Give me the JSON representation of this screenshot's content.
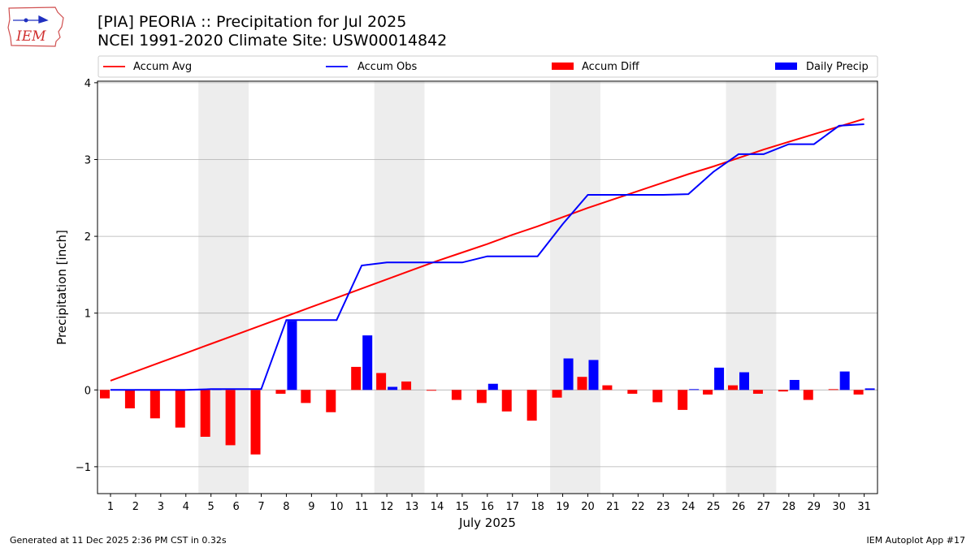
{
  "header": {
    "title_line1": "[PIA] PEORIA :: Precipitation for Jul 2025",
    "title_line2": "NCEI 1991-2020 Climate Site: USW00014842"
  },
  "logo": {
    "text": "IEM"
  },
  "footer": {
    "generated": "Generated at 11 Dec 2025 2:36 PM CST in 0.32s",
    "app": "IEM Autoplot App #17"
  },
  "colors": {
    "avg": "#ff0000",
    "obs": "#0000ff",
    "diff": "#ff0000",
    "daily": "#0000ff",
    "weekend": "#ededed",
    "grid": "#b0b0b0"
  },
  "chart_data": {
    "type": "bar",
    "title": "[PIA] PEORIA :: Precipitation for Jul 2025",
    "xlabel": "July 2025",
    "ylabel": "Precipitation [inch]",
    "ylim": [
      -1.35,
      4.02
    ],
    "yticks": [
      -1,
      0,
      1,
      2,
      3,
      4
    ],
    "ytick_labels": [
      "−1",
      "0",
      "1",
      "2",
      "3",
      "4"
    ],
    "grid": true,
    "legend_position": "top",
    "categories": [
      "1",
      "2",
      "3",
      "4",
      "5",
      "6",
      "7",
      "8",
      "9",
      "10",
      "11",
      "12",
      "13",
      "14",
      "15",
      "16",
      "17",
      "18",
      "19",
      "20",
      "21",
      "22",
      "23",
      "24",
      "25",
      "26",
      "27",
      "28",
      "29",
      "30",
      "31"
    ],
    "weekend_days": [
      5,
      6,
      12,
      13,
      19,
      20,
      26,
      27
    ],
    "legend": [
      "Accum Avg",
      "Accum Obs",
      "Accum Diff",
      "Daily Precip"
    ],
    "series": [
      {
        "name": "Accum Avg",
        "kind": "line",
        "values": [
          0.12,
          0.24,
          0.36,
          0.48,
          0.6,
          0.72,
          0.84,
          0.96,
          1.08,
          1.2,
          1.32,
          1.44,
          1.56,
          1.68,
          1.79,
          1.9,
          2.02,
          2.13,
          2.25,
          2.37,
          2.48,
          2.59,
          2.7,
          2.81,
          2.91,
          3.02,
          3.13,
          3.23,
          3.33,
          3.43,
          3.53
        ]
      },
      {
        "name": "Accum Obs",
        "kind": "line",
        "values": [
          0.0,
          0.0,
          0.0,
          0.0,
          0.01,
          0.01,
          0.01,
          0.91,
          0.91,
          0.91,
          1.62,
          1.66,
          1.66,
          1.66,
          1.66,
          1.74,
          1.74,
          1.74,
          2.16,
          2.54,
          2.54,
          2.54,
          2.54,
          2.55,
          2.84,
          3.07,
          3.07,
          3.2,
          3.2,
          3.44,
          3.46
        ]
      },
      {
        "name": "Accum Diff",
        "kind": "bar",
        "values": [
          -0.11,
          -0.24,
          -0.37,
          -0.49,
          -0.61,
          -0.72,
          -0.84,
          -0.05,
          -0.17,
          -0.29,
          0.3,
          0.22,
          0.11,
          -0.01,
          -0.13,
          -0.17,
          -0.28,
          -0.4,
          -0.1,
          0.17,
          0.06,
          -0.05,
          -0.16,
          -0.26,
          -0.06,
          0.06,
          -0.05,
          -0.02,
          -0.13,
          0.01,
          -0.06
        ]
      },
      {
        "name": "Daily Precip",
        "kind": "bar",
        "values": [
          0,
          0,
          0,
          0,
          0.01,
          0,
          0,
          0.9,
          0,
          0,
          0.71,
          0.04,
          0,
          0,
          0,
          0.08,
          0,
          0,
          0.41,
          0.39,
          0,
          0,
          0,
          0.01,
          0.29,
          0.23,
          0,
          0.13,
          0,
          0.24,
          0.02
        ]
      }
    ]
  }
}
